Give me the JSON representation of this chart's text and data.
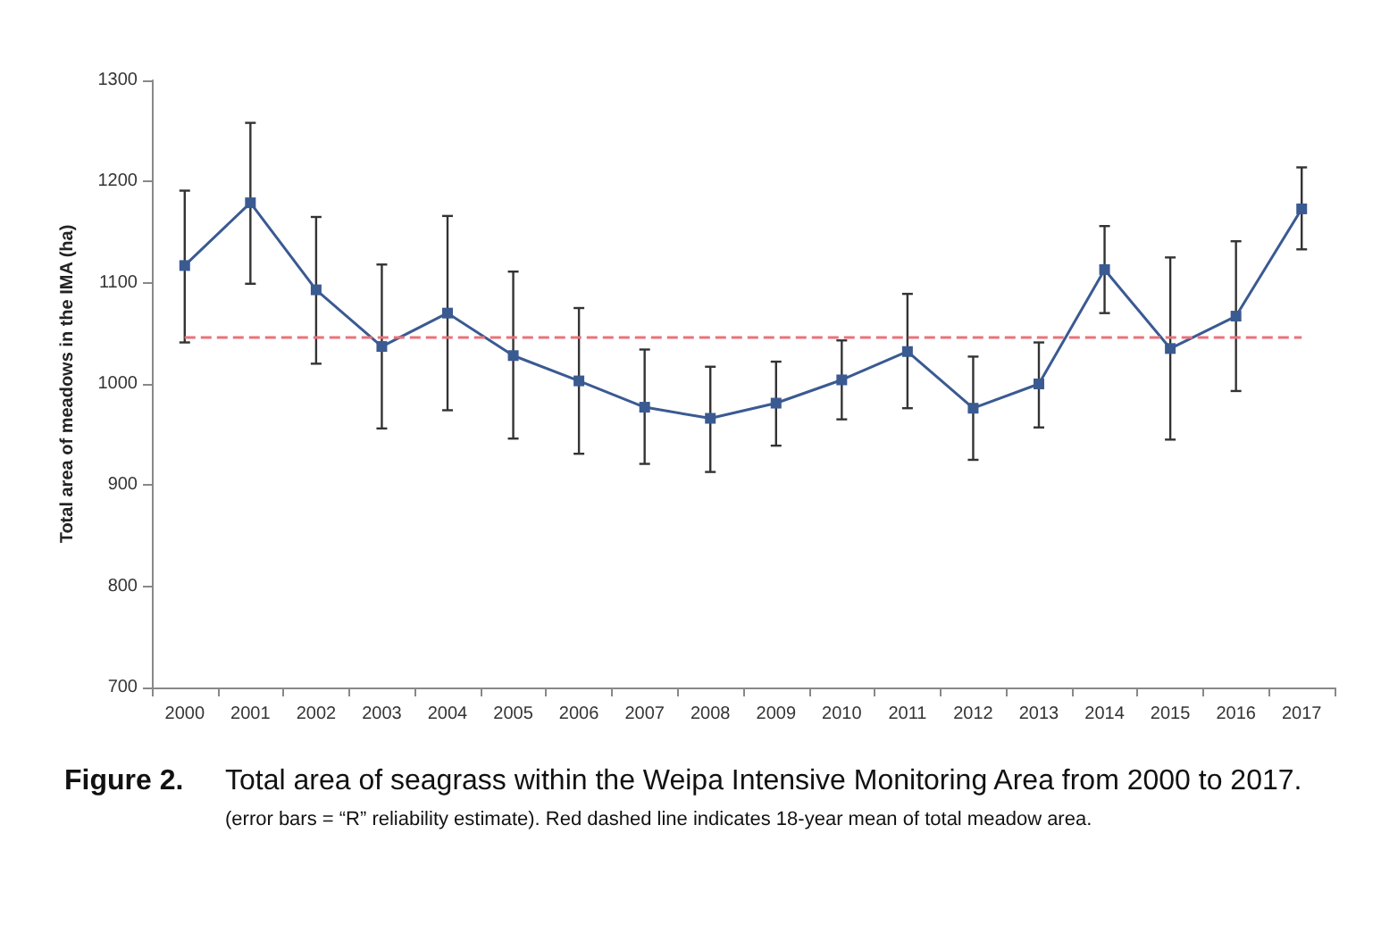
{
  "chart_data": {
    "type": "line",
    "ylabel": "Total area of meadows in the IMA (ha)",
    "categories": [
      "2000",
      "2001",
      "2002",
      "2003",
      "2004",
      "2005",
      "2006",
      "2007",
      "2008",
      "2009",
      "2010",
      "2011",
      "2012",
      "2013",
      "2014",
      "2015",
      "2016",
      "2017"
    ],
    "series": [
      {
        "color": "#3a5a92",
        "values": [
          1117,
          1179,
          1093,
          1037,
          1070,
          1028,
          1003,
          977,
          966,
          981,
          1004,
          1032,
          976,
          1000,
          1113,
          1035,
          1067,
          1173
        ],
        "errors": [
          [
            1041,
            1191
          ],
          [
            1099,
            1258
          ],
          [
            1020,
            1165
          ],
          [
            956,
            1118
          ],
          [
            974,
            1166
          ],
          [
            946,
            1111
          ],
          [
            931,
            1075
          ],
          [
            921,
            1034
          ],
          [
            913,
            1017
          ],
          [
            939,
            1022
          ],
          [
            965,
            1043
          ],
          [
            976,
            1089
          ],
          [
            925,
            1027
          ],
          [
            957,
            1041
          ],
          [
            1070,
            1156
          ],
          [
            945,
            1125
          ],
          [
            993,
            1141
          ],
          [
            1133,
            1214
          ]
        ]
      }
    ],
    "ylim": [
      700,
      1300
    ],
    "yticks": [
      700,
      800,
      900,
      1000,
      1100,
      1200,
      1300
    ],
    "ref_lines": [
      {
        "axis": "y",
        "value": 1047,
        "color": "#e8737a",
        "line_style": "dashed"
      }
    ],
    "marker": "square",
    "line_style": "solid",
    "grid": false,
    "annotations": [
      "Figure 2.",
      "Total area of seagrass within the Weipa Intensive Monitoring Area from 2000 to 2017.",
      "(error bars = “R” reliability estimate). Red dashed line indicates 18-year mean of total meadow area."
    ]
  }
}
